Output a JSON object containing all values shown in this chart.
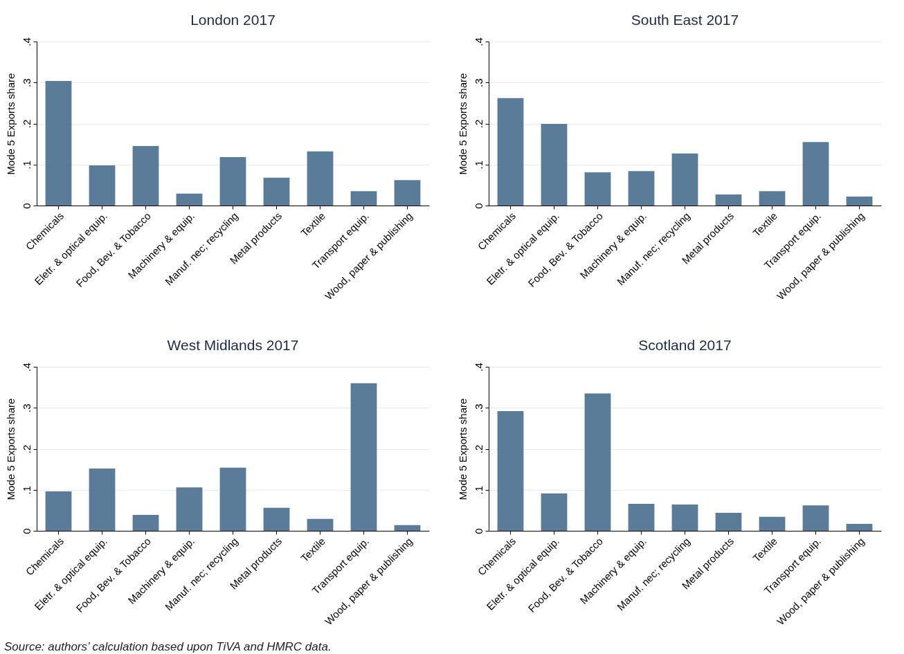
{
  "chart_data": [
    {
      "type": "bar",
      "title": "London 2017",
      "ylabel": "Mode 5 Exports share",
      "categories": [
        "Chemicals",
        "Eletr. & optical equip.",
        "Food, Bev. & Tobacco",
        "Machinery & equip.",
        "Manuf. nec; recycling",
        "Metal products",
        "Textile",
        "Transport equip.",
        "Wood, paper & publishing"
      ],
      "values": [
        0.304,
        0.098,
        0.145,
        0.029,
        0.118,
        0.068,
        0.132,
        0.035,
        0.062
      ],
      "color": "#5b7c99",
      "ylim": [
        0,
        0.4
      ],
      "yticks": [
        {
          "value": 0,
          "label": "0"
        },
        {
          "value": 0.1,
          "label": ".1"
        },
        {
          "value": 0.2,
          "label": ".2"
        },
        {
          "value": 0.3,
          "label": ".3"
        },
        {
          "value": 0.4,
          "label": ".4"
        }
      ],
      "grid": "y"
    },
    {
      "type": "bar",
      "title": "South East 2017",
      "ylabel": "Mode 5 Exports share",
      "categories": [
        "Chemicals",
        "Eletr. & optical equip.",
        "Food, Bev. & Tobacco",
        "Machinery & equip.",
        "Manuf. nec; recycling",
        "Metal products",
        "Textile",
        "Transport equip.",
        "Wood, paper & publishing"
      ],
      "values": [
        0.262,
        0.199,
        0.081,
        0.084,
        0.127,
        0.027,
        0.035,
        0.155,
        0.022
      ],
      "color": "#5b7c99",
      "ylim": [
        0,
        0.4
      ],
      "yticks": [
        {
          "value": 0,
          "label": "0"
        },
        {
          "value": 0.1,
          "label": ".1"
        },
        {
          "value": 0.2,
          "label": ".2"
        },
        {
          "value": 0.3,
          "label": ".3"
        },
        {
          "value": 0.4,
          "label": ".4"
        }
      ],
      "grid": "y"
    },
    {
      "type": "bar",
      "title": "West Midlands 2017",
      "ylabel": "Mode 5 Exports share",
      "categories": [
        "Chemicals",
        "Eletr. & optical equip.",
        "Food, Bev. & Tobacco",
        "Machinery & equip.",
        "Manuf. nec; recycling",
        "Metal products",
        "Textile",
        "Transport equip.",
        "Wood, paper & publishing"
      ],
      "values": [
        0.096,
        0.152,
        0.039,
        0.106,
        0.154,
        0.056,
        0.029,
        0.36,
        0.014
      ],
      "color": "#5b7c99",
      "ylim": [
        0,
        0.4
      ],
      "yticks": [
        {
          "value": 0,
          "label": "0"
        },
        {
          "value": 0.1,
          "label": ".1"
        },
        {
          "value": 0.2,
          "label": ".2"
        },
        {
          "value": 0.3,
          "label": ".3"
        },
        {
          "value": 0.4,
          "label": ".4"
        }
      ],
      "grid": "y",
      "annotations": [
        "Source: authors’ calculation based upon TiVA and HMRC data."
      ]
    },
    {
      "type": "bar",
      "title": "Scotland 2017",
      "ylabel": "Mode 5 Exports share",
      "categories": [
        "Chemicals",
        "Eletr. & optical equip.",
        "Food, Bev. & Tobacco",
        "Machinery & equip.",
        "Manuf. nec; recycling",
        "Metal products",
        "Textile",
        "Transport equip.",
        "Wood, paper & publishing"
      ],
      "values": [
        0.292,
        0.091,
        0.335,
        0.066,
        0.064,
        0.044,
        0.034,
        0.062,
        0.017
      ],
      "color": "#5b7c99",
      "ylim": [
        0,
        0.4
      ],
      "yticks": [
        {
          "value": 0,
          "label": "0"
        },
        {
          "value": 0.1,
          "label": ".1"
        },
        {
          "value": 0.2,
          "label": ".2"
        },
        {
          "value": 0.3,
          "label": ".3"
        },
        {
          "value": 0.4,
          "label": ".4"
        }
      ],
      "grid": "y"
    }
  ]
}
